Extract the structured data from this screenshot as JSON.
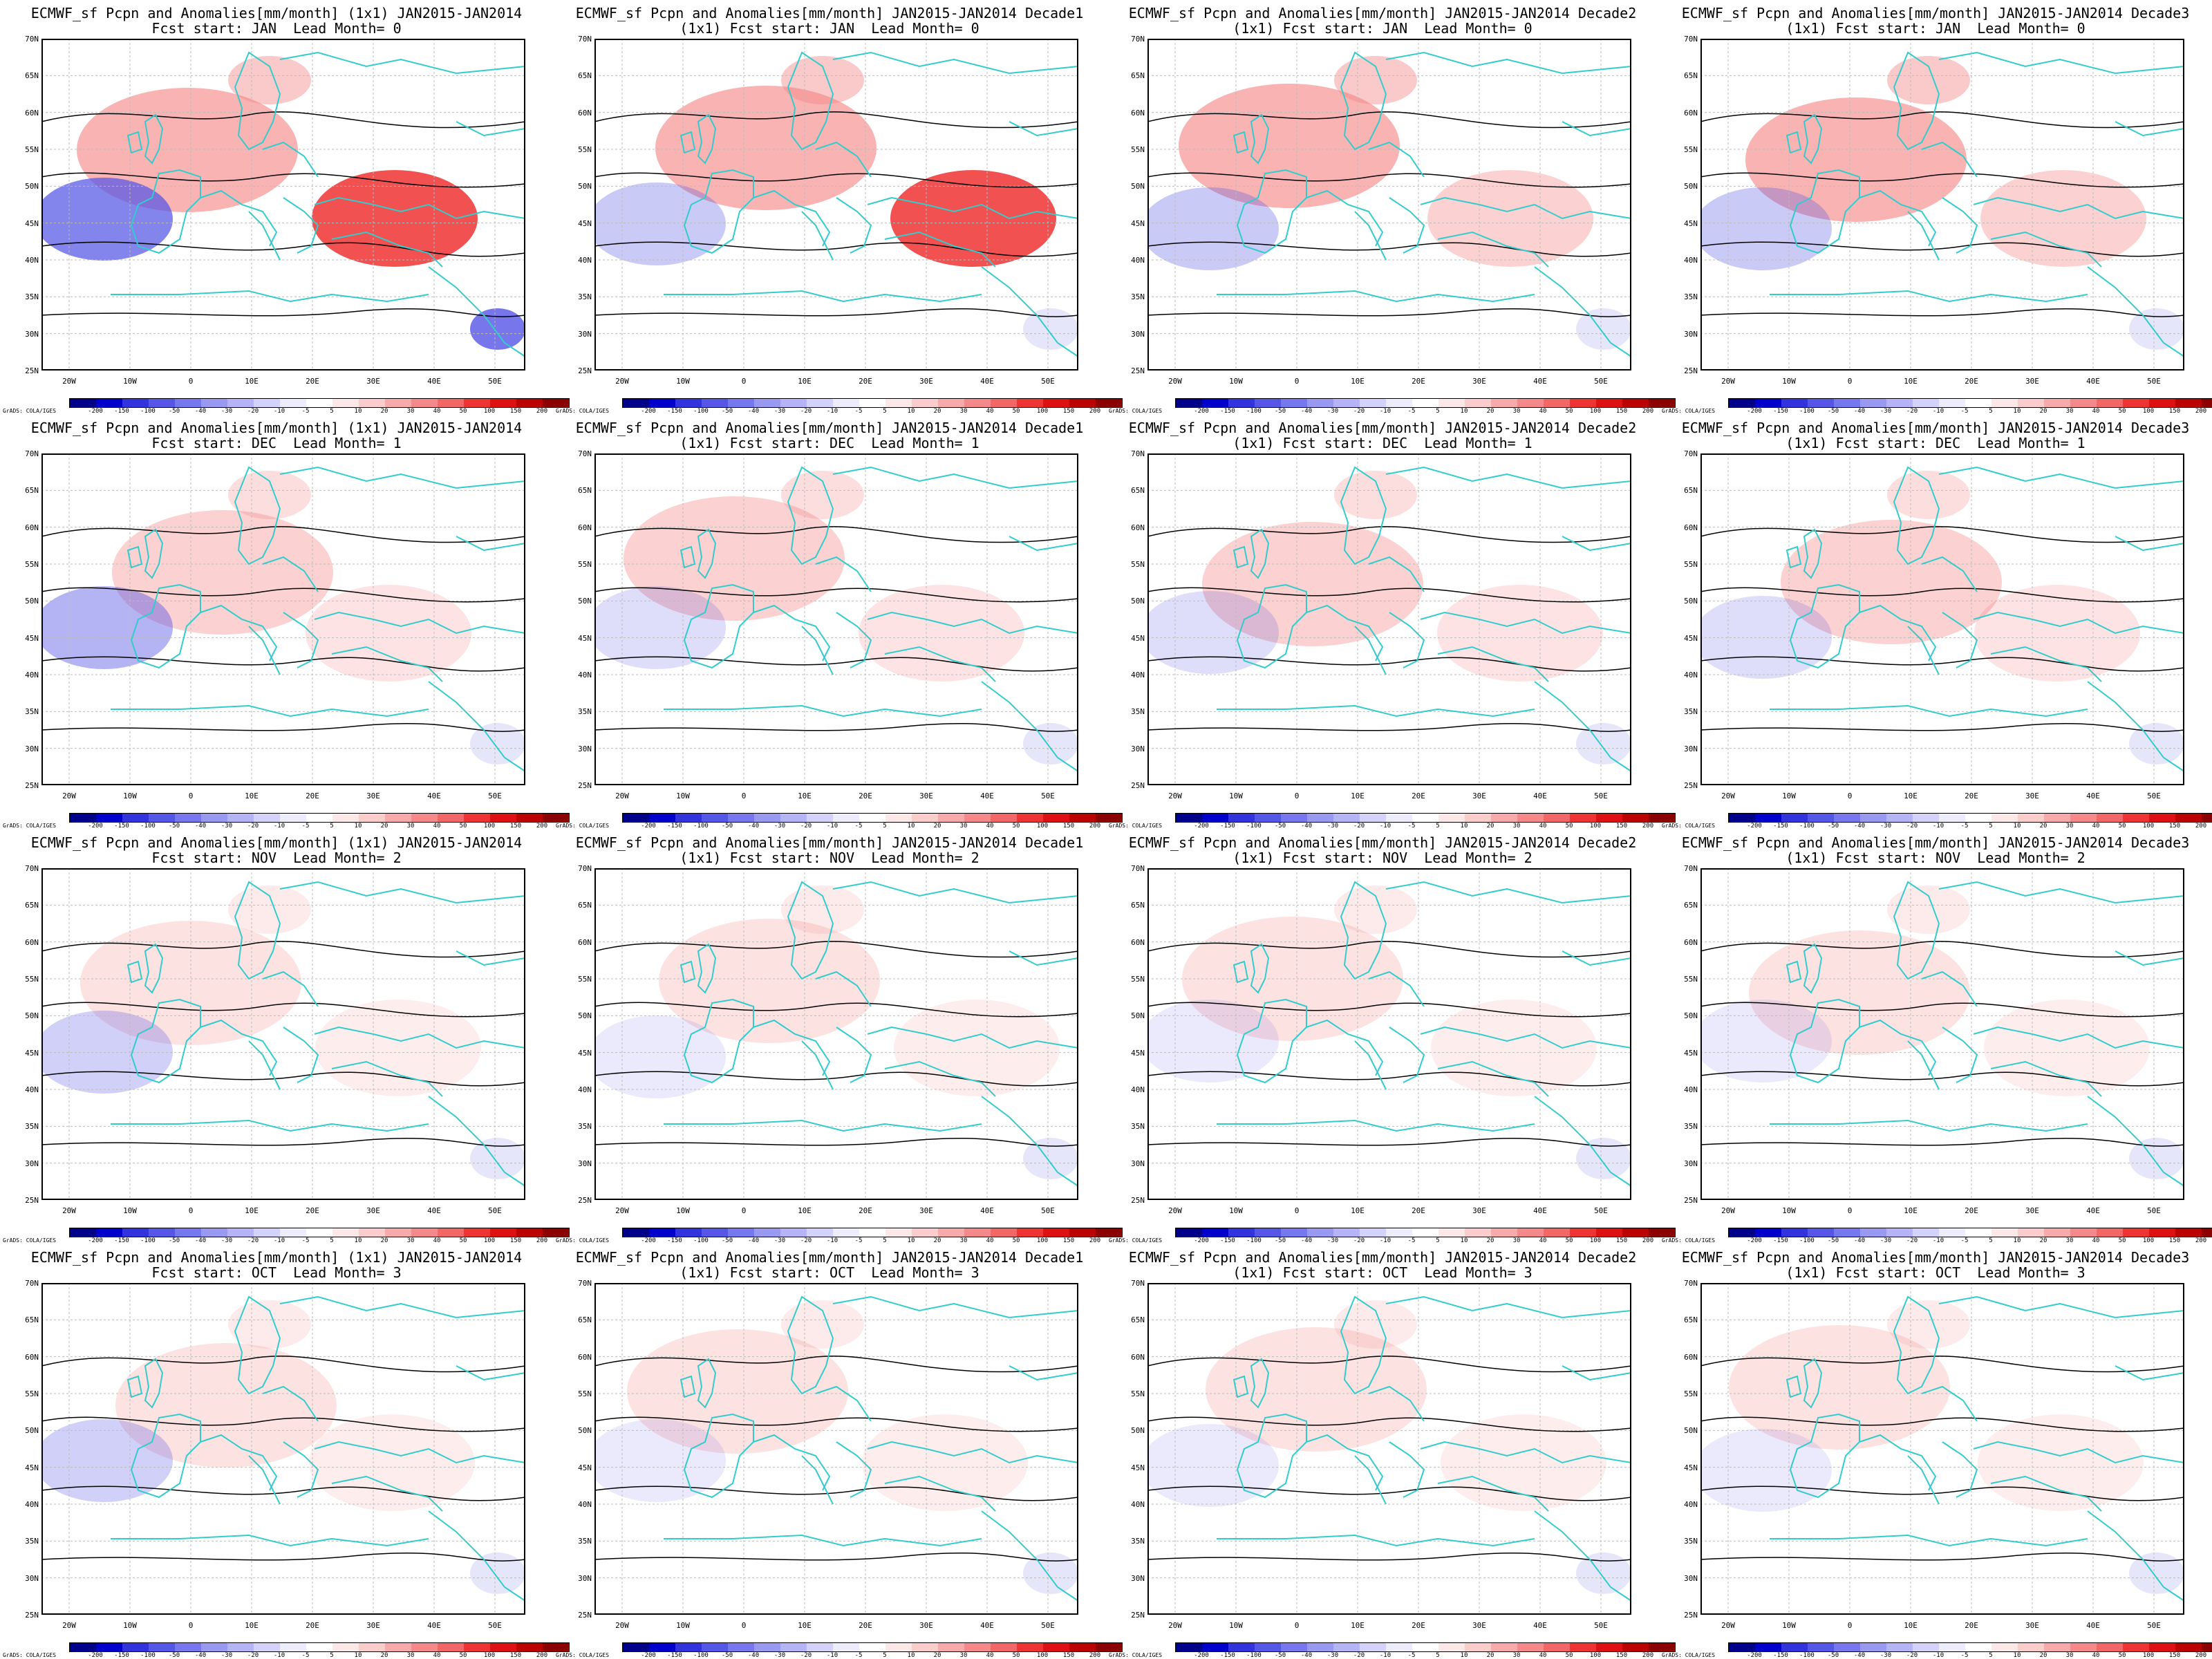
{
  "panels": [
    {
      "title": "ECMWF_sf Pcpn and Anomalies[mm/month] (1x1) JAN2015-JAN2014",
      "subtitle": "Fcst start: JAN  Lead Month= 0"
    },
    {
      "title": "ECMWF_sf Pcpn and Anomalies[mm/month] JAN2015-JAN2014 Decade1",
      "subtitle": "(1x1) Fcst start: JAN  Lead Month= 0"
    },
    {
      "title": "ECMWF_sf Pcpn and Anomalies[mm/month] JAN2015-JAN2014 Decade2",
      "subtitle": "(1x1) Fcst start: JAN  Lead Month= 0"
    },
    {
      "title": "ECMWF_sf Pcpn and Anomalies[mm/month] JAN2015-JAN2014 Decade3",
      "subtitle": "(1x1) Fcst start: JAN  Lead Month= 0"
    },
    {
      "title": "ECMWF_sf Pcpn and Anomalies[mm/month] (1x1) JAN2015-JAN2014",
      "subtitle": "Fcst start: DEC  Lead Month= 1"
    },
    {
      "title": "ECMWF_sf Pcpn and Anomalies[mm/month] JAN2015-JAN2014 Decade1",
      "subtitle": "(1x1) Fcst start: DEC  Lead Month= 1"
    },
    {
      "title": "ECMWF_sf Pcpn and Anomalies[mm/month] JAN2015-JAN2014 Decade2",
      "subtitle": "(1x1) Fcst start: DEC  Lead Month= 1"
    },
    {
      "title": "ECMWF_sf Pcpn and Anomalies[mm/month] JAN2015-JAN2014 Decade3",
      "subtitle": "(1x1) Fcst start: DEC  Lead Month= 1"
    },
    {
      "title": "ECMWF_sf Pcpn and Anomalies[mm/month] (1x1) JAN2015-JAN2014",
      "subtitle": "Fcst start: NOV  Lead Month= 2"
    },
    {
      "title": "ECMWF_sf Pcpn and Anomalies[mm/month] JAN2015-JAN2014 Decade1",
      "subtitle": "(1x1) Fcst start: NOV  Lead Month= 2"
    },
    {
      "title": "ECMWF_sf Pcpn and Anomalies[mm/month] JAN2015-JAN2014 Decade2",
      "subtitle": "(1x1) Fcst start: NOV  Lead Month= 2"
    },
    {
      "title": "ECMWF_sf Pcpn and Anomalies[mm/month] JAN2015-JAN2014 Decade3",
      "subtitle": "(1x1) Fcst start: NOV  Lead Month= 2"
    },
    {
      "title": "ECMWF_sf Pcpn and Anomalies[mm/month] (1x1) JAN2015-JAN2014",
      "subtitle": "Fcst start: OCT  Lead Month= 3"
    },
    {
      "title": "ECMWF_sf Pcpn and Anomalies[mm/month] JAN2015-JAN2014 Decade1",
      "subtitle": "(1x1) Fcst start: OCT  Lead Month= 3"
    },
    {
      "title": "ECMWF_sf Pcpn and Anomalies[mm/month] JAN2015-JAN2014 Decade2",
      "subtitle": "(1x1) Fcst start: OCT  Lead Month= 3"
    },
    {
      "title": "ECMWF_sf Pcpn and Anomalies[mm/month] JAN2015-JAN2014 Decade3",
      "subtitle": "(1x1) Fcst start: OCT  Lead Month= 3"
    }
  ],
  "lat_labels": [
    "70N",
    "65N",
    "60N",
    "55N",
    "50N",
    "45N",
    "40N",
    "35N",
    "30N",
    "25N"
  ],
  "lon_labels": [
    "20W",
    "10W",
    "0",
    "10E",
    "20E",
    "30E",
    "40E",
    "50E"
  ],
  "colorbar": {
    "labels": [
      "-200",
      "-150",
      "-100",
      "-50",
      "-40",
      "-30",
      "-20",
      "-10",
      "-5",
      "5",
      "10",
      "20",
      "30",
      "40",
      "50",
      "100",
      "150",
      "200"
    ],
    "colors": [
      "#00008b",
      "#0000cd",
      "#3333dd",
      "#5555e6",
      "#7777ee",
      "#9999f2",
      "#b4b4f6",
      "#d2d2fa",
      "#ececfd",
      "#ffffff",
      "#fde8e8",
      "#fbcccc",
      "#f8aaaa",
      "#f58888",
      "#f26666",
      "#ee3333",
      "#dd1111",
      "#bb0000",
      "#8b0000"
    ]
  },
  "credit": "GrADS: COLA/IGES",
  "colors": {
    "coast": "#33cccc",
    "contour": "#000000",
    "grid": "#bbbbbb"
  }
}
